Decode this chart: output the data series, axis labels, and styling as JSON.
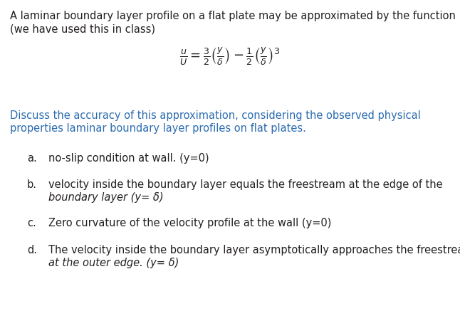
{
  "background_color": "#ffffff",
  "text_color": "#231f20",
  "blue_color": "#2B6CB0",
  "line1": "A laminar boundary layer profile on a flat plate may be approximated by the function",
  "line2": "(we have used this in class)",
  "equation": "$\\frac{u}{U} = \\frac{3}{2}\\left(\\frac{y}{\\delta}\\right) - \\frac{1}{2}\\left(\\frac{y}{\\delta}\\right)^{3}$",
  "discuss_line1": "Discuss the accuracy of this approximation, considering the observed physical",
  "discuss_line2": "properties laminar boundary layer profiles on flat plates.",
  "item_a_label": "a.",
  "item_a_text": "no-slip condition at wall. (y=0)",
  "item_b_label": "b.",
  "item_b_line1": "velocity inside the boundary layer equals the freestream at the edge of the",
  "item_b_line2": "boundary layer (y= δ)",
  "item_c_label": "c.",
  "item_c_text": "Zero curvature of the velocity profile at the wall (y=0)",
  "item_d_label": "d.",
  "item_d_line1": "The velocity inside the boundary layer asymptotically approaches the freestream",
  "item_d_line2": "at the outer edge. (y= δ)",
  "fontsize_main": 10.5,
  "fontsize_equation": 13,
  "fontsize_items": 10.5
}
